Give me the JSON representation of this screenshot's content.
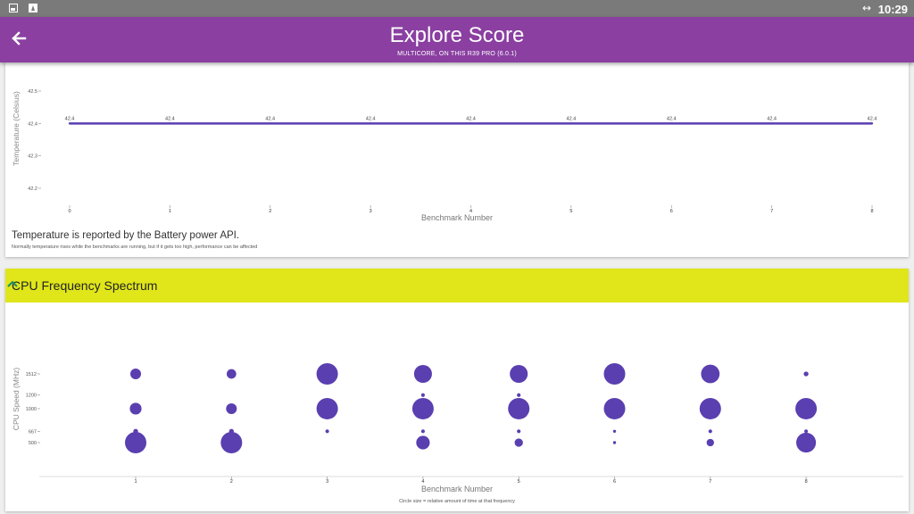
{
  "status_bar": {
    "network_glyph": "↔",
    "time": "10:29"
  },
  "app_bar": {
    "title": "Explore Score",
    "subtitle": "MULTICORE, ON THIS R39 PRO (6.0.1)"
  },
  "temperature_card": {
    "note": "Temperature is reported by the Battery power API.",
    "subnote": "Normally temperature rises while the benchmarks are running, but if it gets too high, performance can be affected"
  },
  "cpu_card": {
    "title": "CPU Frequency Spectrum",
    "caption": "Circle size = relative amount of time at that frequency"
  },
  "colors": {
    "app_bar": "#8a3fa1",
    "series": "#5a3fb0",
    "header_yellow": "#e0e61a"
  },
  "chart_data": [
    {
      "type": "line",
      "x": [
        0,
        1,
        2,
        3,
        4,
        5,
        6,
        7,
        8
      ],
      "values": [
        42.4,
        42.4,
        42.4,
        42.4,
        42.4,
        42.4,
        42.4,
        42.4,
        42.4
      ],
      "data_labels": [
        "42.4",
        "42.4",
        "42.4",
        "42.4",
        "42.4",
        "42.4",
        "42.4",
        "42.4",
        "42.4"
      ],
      "x_ticks": [
        "0",
        "1",
        "2",
        "3",
        "4",
        "5",
        "6",
        "7",
        "8"
      ],
      "y_ticks": [
        {
          "v": 42.5,
          "label": "42.5"
        },
        {
          "v": 42.4,
          "label": "42.4"
        },
        {
          "v": 42.3,
          "label": "42.3"
        },
        {
          "v": 42.2,
          "label": "42.2"
        }
      ],
      "xlabel": "Benchmark Number",
      "ylabel": "Temperature (Celsius)",
      "xlim": [
        0,
        8
      ],
      "ylim": [
        42.2,
        42.5
      ],
      "grid": false
    },
    {
      "type": "scatter",
      "x_ticks": [
        "1",
        "2",
        "3",
        "4",
        "5",
        "6",
        "7",
        "8"
      ],
      "y_ticks": [
        {
          "v": 1512,
          "label": "1512"
        },
        {
          "v": 1200,
          "label": "1200"
        },
        {
          "v": 1000,
          "label": "1000"
        },
        {
          "v": 667,
          "label": "667"
        },
        {
          "v": 500,
          "label": "500"
        }
      ],
      "xlabel": "Benchmark Number",
      "ylabel": "CPU Speed (MHz)",
      "frequencies": [
        1512,
        1200,
        1000,
        667,
        500
      ],
      "relative_time": [
        [
          0.25,
          0.0,
          0.3,
          0.05,
          1.0
        ],
        [
          0.2,
          0.0,
          0.25,
          0.05,
          1.0
        ],
        [
          1.0,
          0.0,
          1.0,
          0.03,
          0.0
        ],
        [
          0.7,
          0.03,
          1.0,
          0.03,
          0.4
        ],
        [
          0.7,
          0.03,
          1.0,
          0.03,
          0.15
        ],
        [
          1.0,
          0.0,
          1.0,
          0.02,
          0.02
        ],
        [
          0.75,
          0.0,
          1.0,
          0.03,
          0.12
        ],
        [
          0.05,
          0.0,
          1.0,
          0.03,
          0.85
        ]
      ],
      "x_pixel_note": "",
      "grid": false
    }
  ]
}
